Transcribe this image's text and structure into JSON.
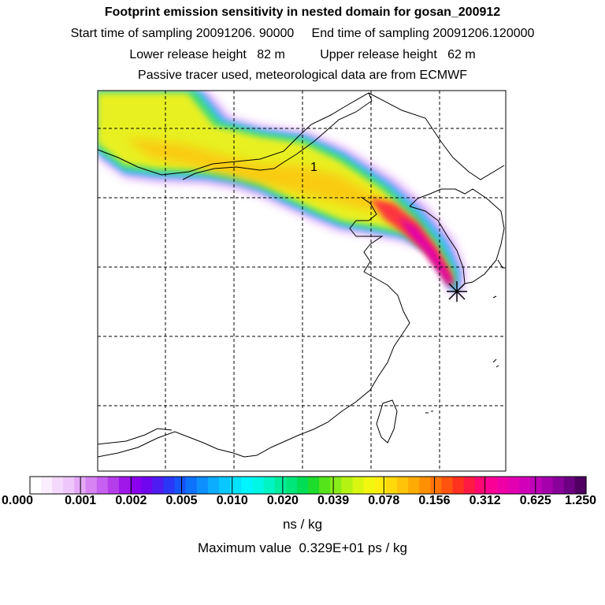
{
  "header": {
    "title": "Footprint emission sensitivity in nested domain for gosan_200912",
    "sampling_line": "Start time of sampling 20091206. 90000     End time of sampling 20091206.120000",
    "release_line": "Lower release height   82 m          Upper release height   62 m",
    "tracer_line": "Passive tracer used, meteorological data are from ECMWF"
  },
  "map": {
    "receptor_label": "1"
  },
  "legend": {
    "tick_labels": [
      "0.000",
      "0.001",
      "0.002",
      "0.005",
      "0.010",
      "0.020",
      "0.039",
      "0.078",
      "0.156",
      "0.312",
      "0.625",
      "1.250"
    ],
    "colors": [
      "#ffffff",
      "#fbeefe",
      "#f4d9fc",
      "#eec6fb",
      "#e4a8f7",
      "#d783f3",
      "#c75ff0",
      "#b63deb",
      "#a018e9",
      "#8a00ee",
      "#7006f0",
      "#4f1bf3",
      "#2b37f6",
      "#1555fa",
      "#0d72fc",
      "#0d8ffd",
      "#0cacfe",
      "#08c8ff",
      "#05e2ff",
      "#00f5ff",
      "#00f7e6",
      "#00f4c4",
      "#00ee9e",
      "#00e67a",
      "#00de55",
      "#1ddc2c",
      "#55e41a",
      "#88ec18",
      "#b4f214",
      "#d8f610",
      "#f3f710",
      "#ffee10",
      "#ffd90c",
      "#ffc309",
      "#ffab06",
      "#ff9006",
      "#ff7309",
      "#ff530f",
      "#ff3220",
      "#ff1a44",
      "#ff0873",
      "#fb0096",
      "#ef00a6",
      "#e200b1",
      "#d300b9",
      "#be00b8",
      "#a500ab",
      "#8a009a",
      "#6d0082",
      "#4f0060"
    ],
    "units": "ns / kg",
    "max_value_text": "Maximum value  0.329E+01 ps / kg"
  }
}
